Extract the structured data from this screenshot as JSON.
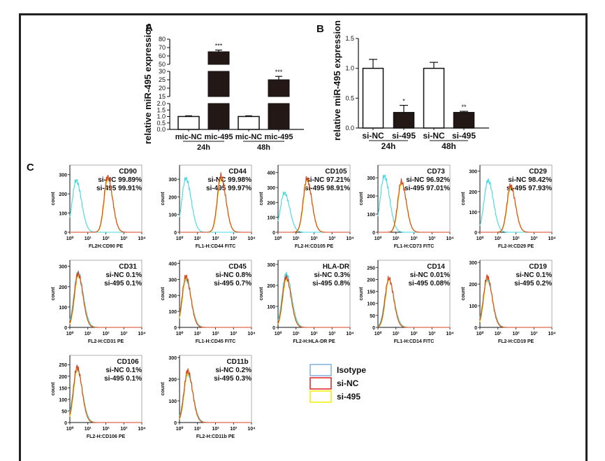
{
  "figure": {
    "panel_labels": [
      "A",
      "B",
      "C"
    ]
  },
  "chart_data": [
    {
      "panel": "A",
      "type": "bar",
      "ylabel": "relative miR-495 expression",
      "categories": [
        "mic-NC",
        "mic-495",
        "mic-NC",
        "mic-495"
      ],
      "groups": [
        {
          "label": "24h",
          "members": [
            0,
            1
          ]
        },
        {
          "label": "48h",
          "members": [
            2,
            3
          ]
        }
      ],
      "values": [
        1.0,
        65,
        1.0,
        25
      ],
      "errors": [
        0.05,
        2,
        0.05,
        2
      ],
      "fill": [
        "white",
        "black",
        "white",
        "black"
      ],
      "significance": [
        "",
        "***",
        "",
        "***"
      ],
      "broken_axis": [
        {
          "range": [
            0,
            2.0
          ],
          "ticks": [
            "0.0",
            "0.5",
            "1.0",
            "1.5",
            "2.0"
          ],
          "tick_values": [
            0,
            0.5,
            1.0,
            1.5,
            2.0
          ]
        },
        {
          "range": [
            15,
            30
          ],
          "ticks": [
            "15",
            "20",
            "25",
            "30"
          ],
          "tick_values": [
            15,
            20,
            25,
            30
          ]
        },
        {
          "range": [
            50,
            80
          ],
          "ticks": [
            "50",
            "60",
            "70",
            "80"
          ],
          "tick_values": [
            50,
            60,
            70,
            80
          ]
        }
      ]
    },
    {
      "panel": "B",
      "type": "bar",
      "ylabel": "relative miR-495 expression",
      "categories": [
        "si-NC",
        "si-495",
        "si-NC",
        "si-495"
      ],
      "groups": [
        {
          "label": "24h",
          "members": [
            0,
            1
          ]
        },
        {
          "label": "48h",
          "members": [
            2,
            3
          ]
        }
      ],
      "values": [
        1.0,
        0.26,
        1.0,
        0.26
      ],
      "errors": [
        0.15,
        0.12,
        0.1,
        0.02
      ],
      "fill": [
        "white",
        "black",
        "white",
        "black"
      ],
      "significance": [
        "",
        "*",
        "",
        "**"
      ],
      "ylim": [
        0,
        1.5
      ],
      "ticks": [
        "0.0",
        "0.5",
        "1.0",
        "1.5"
      ],
      "tick_values": [
        0,
        0.5,
        1.0,
        1.5
      ]
    },
    {
      "panel": "C",
      "type": "line",
      "description": "Flow cytometry histograms",
      "ylabel": "count",
      "x_ticks": [
        "10⁰",
        "10¹",
        "10²",
        "10³",
        "10⁴"
      ],
      "legend": [
        {
          "label": "Isotype",
          "color": "#7fb0e0"
        },
        {
          "label": "si-NC",
          "color": "#e02020"
        },
        {
          "label": "si-495",
          "color": "#f0f000"
        }
      ],
      "histograms": [
        {
          "marker": "CD90",
          "si_nc": "si-NC 99.89%",
          "si_495": "si-495 99.91%",
          "xlabel": "FL2H:CD90 PE",
          "ymax": 350,
          "yticks": [
            0,
            100,
            200,
            300
          ],
          "iso_peak_log": 0.35,
          "iso_height": 270,
          "pos_peak_log": 2.1,
          "pos_height": 290
        },
        {
          "marker": "CD44",
          "si_nc": "si-NC 99.98%",
          "si_495": "si-495 99.97%",
          "xlabel": "FL1-H:CD44 FITC",
          "ymax": 380,
          "yticks": [
            0,
            100,
            200,
            300
          ],
          "iso_peak_log": 0.35,
          "iso_height": 305,
          "pos_peak_log": 2.3,
          "pos_height": 320
        },
        {
          "marker": "CD105",
          "si_nc": "si-NC 97.21%",
          "si_495": "si-495 98.91%",
          "xlabel": "FL2-H:CD105 PE",
          "ymax": 450,
          "yticks": [
            0,
            100,
            200,
            300,
            400
          ],
          "iso_peak_log": 0.35,
          "iso_height": 265,
          "pos_peak_log": 1.6,
          "pos_height": 360
        },
        {
          "marker": "CD73",
          "si_nc": "si-NC 96.92%",
          "si_495": "si-495 97.01%",
          "xlabel": "FL1-H:CD73 FITC",
          "ymax": 370,
          "yticks": [
            0,
            100,
            200,
            300
          ],
          "iso_peak_log": 0.35,
          "iso_height": 310,
          "pos_peak_log": 1.3,
          "pos_height": 280
        },
        {
          "marker": "CD29",
          "si_nc": "si-NC 98.42%",
          "si_495": "si-495 97.93%",
          "xlabel": "FL2-H:CD29 PE",
          "ymax": 330,
          "yticks": [
            0,
            100,
            200,
            300
          ],
          "iso_peak_log": 0.45,
          "iso_height": 255,
          "pos_peak_log": 1.7,
          "pos_height": 230
        },
        {
          "marker": "CD31",
          "si_nc": "si-NC 0.1%",
          "si_495": "si-495 0.1%",
          "xlabel": "FL2-H:CD31 PE",
          "ymax": 330,
          "yticks": [
            0,
            100,
            200,
            300
          ],
          "iso_peak_log": 0.45,
          "iso_height": 270,
          "pos_peak_log": 0.45,
          "pos_height": 265
        },
        {
          "marker": "CD45",
          "si_nc": "si-NC 0.8%",
          "si_495": "si-495 0.7%",
          "xlabel": "FL1-H:CD45 FITC",
          "ymax": 420,
          "yticks": [
            0,
            100,
            200,
            300,
            400
          ],
          "iso_peak_log": 0.35,
          "iso_height": 300,
          "pos_peak_log": 0.35,
          "pos_height": 320
        },
        {
          "marker": "HLA-DR",
          "si_nc": "si-NC 0.3%",
          "si_495": "si-495 0.8%",
          "xlabel": "FL2-H:HLA-DR PE",
          "ymax": 320,
          "yticks": [
            0,
            100,
            200,
            300
          ],
          "iso_peak_log": 0.45,
          "iso_height": 255,
          "pos_peak_log": 0.45,
          "pos_height": 240
        },
        {
          "marker": "CD14",
          "si_nc": "si-NC 0.01%",
          "si_495": "si-495 0.08%",
          "xlabel": "FL1-H:CD14 FITC",
          "ymax": 280,
          "yticks": [
            0,
            50,
            100,
            150,
            200,
            250
          ],
          "iso_peak_log": 0.6,
          "iso_height": 200,
          "pos_peak_log": 0.6,
          "pos_height": 205
        },
        {
          "marker": "CD19",
          "si_nc": "si-NC 0.1%",
          "si_495": "si-495 0.2%",
          "xlabel": "FL2-H:CD19 PE",
          "ymax": 310,
          "yticks": [
            0,
            100,
            200,
            300
          ],
          "iso_peak_log": 0.4,
          "iso_height": 220,
          "pos_peak_log": 0.4,
          "pos_height": 235
        },
        {
          "marker": "CD106",
          "si_nc": "si-NC 0.1%",
          "si_495": "si-495 0.1%",
          "xlabel": "FL2-H:CD106 PE",
          "ymax": 290,
          "yticks": [
            0,
            50,
            100,
            150,
            200,
            250
          ],
          "iso_peak_log": 0.4,
          "iso_height": 230,
          "pos_peak_log": 0.4,
          "pos_height": 240
        },
        {
          "marker": "CD11b",
          "si_nc": "si-NC 0.2%",
          "si_495": "si-495 0.3%",
          "xlabel": "FL2-H:CD11b PE",
          "ymax": 310,
          "yticks": [
            0,
            100,
            200,
            300
          ],
          "iso_peak_log": 0.45,
          "iso_height": 225,
          "pos_peak_log": 0.45,
          "pos_height": 240
        }
      ]
    }
  ]
}
